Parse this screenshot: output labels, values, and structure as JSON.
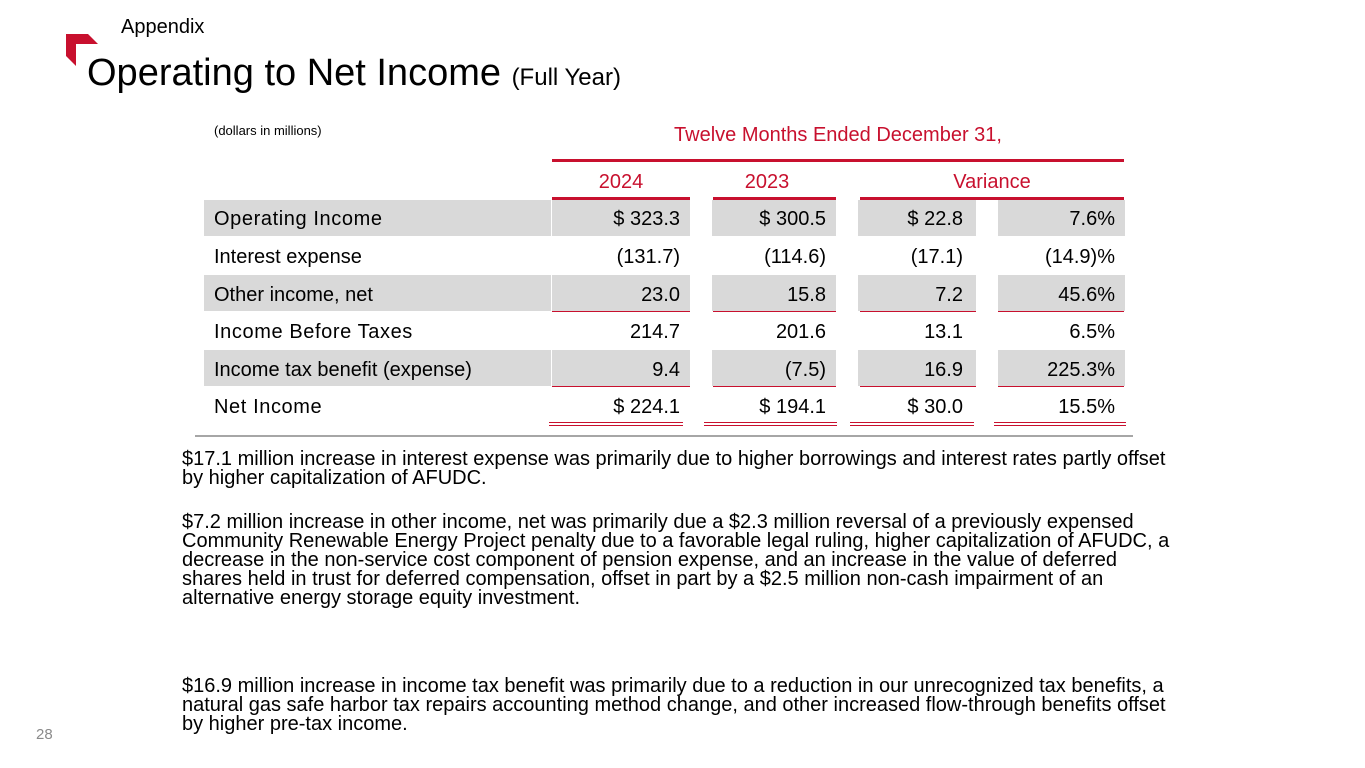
{
  "header": {
    "section": "Appendix",
    "title": "Operating to Net Income",
    "subtitle": "(Full Year)"
  },
  "table": {
    "units_note": "(dollars in millions)",
    "period_header": "Twelve Months Ended December 31,",
    "col_headers": {
      "y2024": "2024",
      "y2023": "2023",
      "variance": "Variance"
    },
    "rows": [
      {
        "label": "Operating Income",
        "v2024": "$ 323.3",
        "v2023": "$ 300.5",
        "var_abs": "$ 22.8",
        "var_pct": "7.6%"
      },
      {
        "label": "Interest expense",
        "v2024": "(131.7)",
        "v2023": "(114.6)",
        "var_abs": "(17.1)",
        "var_pct": "(14.9)%"
      },
      {
        "label": "Other income, net",
        "v2024": "23.0",
        "v2023": "15.8",
        "var_abs": "7.2",
        "var_pct": "45.6%"
      },
      {
        "label": "Income Before Taxes",
        "v2024": "214.7",
        "v2023": "201.6",
        "var_abs": "13.1",
        "var_pct": "6.5%"
      },
      {
        "label": "Income tax benefit (expense)",
        "v2024": "9.4",
        "v2023": "(7.5)",
        "var_abs": "16.9",
        "var_pct": "225.3%"
      },
      {
        "label": "Net Income",
        "v2024": "$ 224.1",
        "v2023": "$ 194.1",
        "var_abs": "$ 30.0",
        "var_pct": "15.5%"
      }
    ]
  },
  "notes": [
    "$17.1 million increase in interest expense was primarily due to higher borrowings and interest rates partly offset by higher capitalization of AFUDC.",
    "$7.2 million increase in other income, net was primarily due a $2.3 million reversal of a previously expensed Community Renewable Energy Project penalty due to a favorable legal ruling, higher capitalization of AFUDC, a decrease in the non-service cost component of pension expense, and an increase in the value of deferred shares held in trust for deferred compensation, offset in part by a $2.5 million non-cash impairment of an alternative energy storage equity investment.",
    "$16.9 million increase in income tax benefit was primarily due to a reduction in our unrecognized tax benefits, a natural gas safe harbor tax repairs accounting method change, and other increased flow-through benefits offset by higher pre-tax income."
  ],
  "footer": {
    "page_number": "28"
  },
  "colors": {
    "accent": "#c8102e",
    "row_shade": "#d9d9d9",
    "rule_grey": "#a6a6a6"
  }
}
